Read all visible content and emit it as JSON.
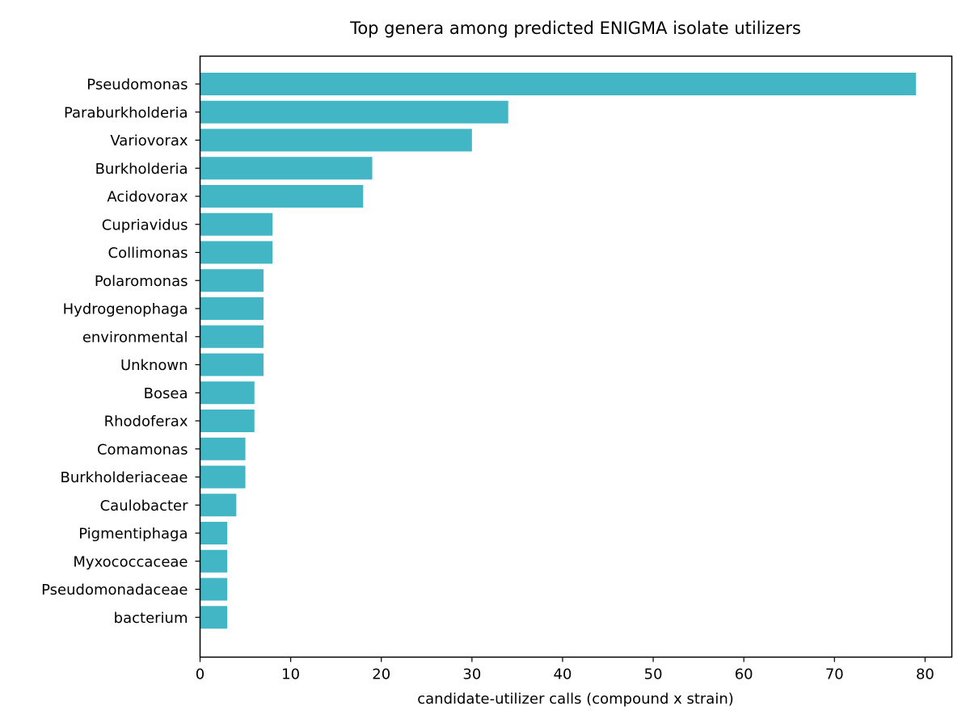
{
  "chart_data": {
    "type": "bar",
    "orientation": "horizontal",
    "title": "Top genera among predicted ENIGMA isolate utilizers",
    "xlabel": "candidate-utilizer calls (compound x strain)",
    "ylabel": "",
    "xlim": [
      0,
      82.95
    ],
    "xticks": [
      0,
      10,
      20,
      30,
      40,
      50,
      60,
      70,
      80
    ],
    "grid": false,
    "bar_color": "#42b6c4",
    "categories": [
      "Pseudomonas",
      "Paraburkholderia",
      "Variovorax",
      "Burkholderia",
      "Acidovorax",
      "Cupriavidus",
      "Collimonas",
      "Polaromonas",
      "Hydrogenophaga",
      "environmental",
      "Unknown",
      "Bosea",
      "Rhodoferax",
      "Comamonas",
      "Burkholderiaceae",
      "Caulobacter",
      "Pigmentiphaga",
      "Myxococcaceae",
      "Pseudomonadaceae",
      "bacterium"
    ],
    "values": [
      79,
      34,
      30,
      19,
      18,
      8,
      8,
      7,
      7,
      7,
      7,
      6,
      6,
      5,
      5,
      4,
      3,
      3,
      3,
      3
    ]
  }
}
